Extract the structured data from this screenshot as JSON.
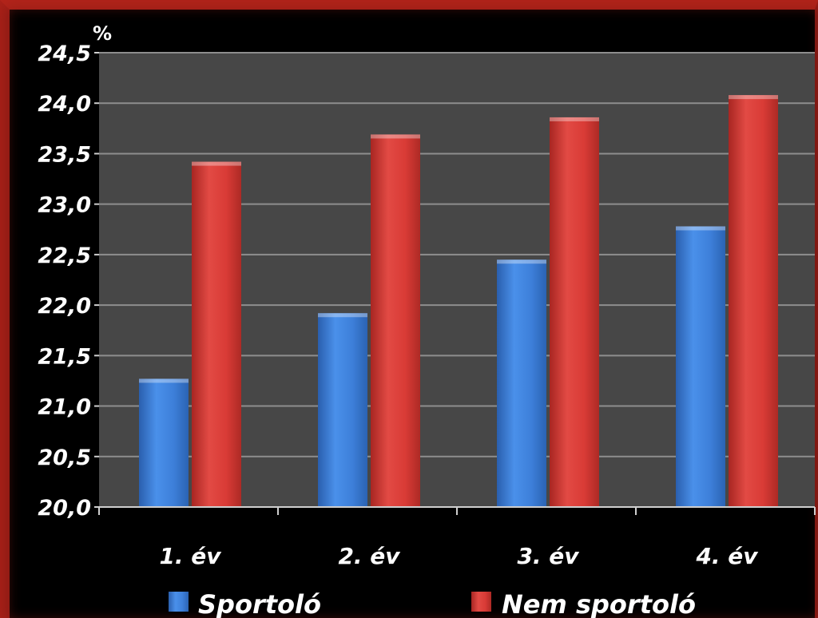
{
  "chart_data": {
    "type": "bar",
    "unit_label": "%",
    "categories": [
      "1. év",
      "2. év",
      "3. év",
      "4. év"
    ],
    "series": [
      {
        "name": "Sportoló",
        "values": [
          21.27,
          21.92,
          22.45,
          22.78
        ],
        "color": "#3d7fd9"
      },
      {
        "name": "Nem sportoló",
        "values": [
          23.42,
          23.69,
          23.86,
          24.08
        ],
        "color": "#d93b36"
      }
    ],
    "ylim": [
      20.0,
      24.5
    ],
    "yticks": [
      "20,0",
      "20,5",
      "21,0",
      "21,5",
      "22,0",
      "22,5",
      "23,0",
      "23,5",
      "24,0",
      "24,5"
    ],
    "grid": true,
    "legend_position": "bottom",
    "plot_background": "#474747",
    "gridline_color": "#8e8e8e"
  }
}
